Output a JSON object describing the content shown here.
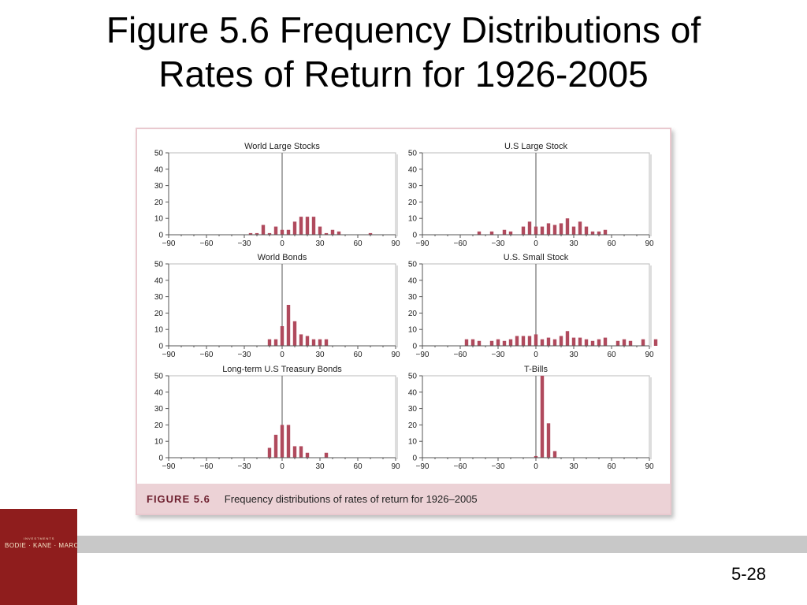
{
  "slide": {
    "title_line1": "Figure 5.6 Frequency Distributions of",
    "title_line2": "Rates of Return for 1926-2005",
    "page_number": "5-28",
    "logo_text": "BODIE · KANE · MARCUS",
    "logo_small": "INVESTMENTS"
  },
  "figure": {
    "label": "FIGURE 5.6",
    "caption": "Frequency distributions of rates of return for 1926–2005"
  },
  "colors": {
    "bar": "#b04a5d",
    "axis": "#555555",
    "frame": "#e9c9cf",
    "caption_band": "#ecd2d6",
    "logo": "#8f1d1d"
  },
  "chart_data": [
    {
      "type": "bar",
      "title": "World Large Stocks",
      "xlim": [
        -90,
        90
      ],
      "ylim": [
        0,
        50
      ],
      "xticks": [
        "−90",
        "−60",
        "−30",
        "0",
        "30",
        "60",
        "90"
      ],
      "yticks": [
        "0",
        "10",
        "20",
        "30",
        "40",
        "50"
      ],
      "x": [
        -25,
        -20,
        -15,
        -10,
        -5,
        0,
        5,
        10,
        15,
        20,
        25,
        30,
        35,
        40,
        45,
        70
      ],
      "values": [
        1,
        1,
        6,
        1,
        5,
        3,
        3,
        8,
        11,
        11,
        11,
        5,
        1,
        3,
        2,
        1
      ]
    },
    {
      "type": "bar",
      "title": "U.S Large Stock",
      "xlim": [
        -90,
        90
      ],
      "ylim": [
        0,
        50
      ],
      "xticks": [
        "−90",
        "−60",
        "−30",
        "0",
        "30",
        "60",
        "90"
      ],
      "yticks": [
        "0",
        "10",
        "20",
        "30",
        "40",
        "50"
      ],
      "x": [
        -45,
        -35,
        -25,
        -20,
        -10,
        -5,
        0,
        5,
        10,
        15,
        20,
        25,
        30,
        35,
        40,
        45,
        50,
        55
      ],
      "values": [
        2,
        2,
        3,
        2,
        5,
        8,
        5,
        5,
        7,
        6,
        7,
        10,
        5,
        8,
        5,
        2,
        2,
        3
      ]
    },
    {
      "type": "bar",
      "title": "World Bonds",
      "xlim": [
        -90,
        90
      ],
      "ylim": [
        0,
        50
      ],
      "xticks": [
        "−90",
        "−60",
        "−30",
        "0",
        "30",
        "60",
        "90"
      ],
      "yticks": [
        "0",
        "10",
        "20",
        "30",
        "40",
        "50"
      ],
      "x": [
        -10,
        -5,
        0,
        5,
        10,
        15,
        20,
        25,
        30,
        35
      ],
      "values": [
        4,
        4,
        12,
        25,
        15,
        7,
        6,
        4,
        4,
        4
      ]
    },
    {
      "type": "bar",
      "title": "U.S. Small Stock",
      "xlim": [
        -90,
        90
      ],
      "ylim": [
        0,
        50
      ],
      "xticks": [
        "−90",
        "−60",
        "−30",
        "0",
        "30",
        "60",
        "90"
      ],
      "yticks": [
        "0",
        "10",
        "20",
        "30",
        "40",
        "50"
      ],
      "x": [
        -55,
        -50,
        -45,
        -35,
        -30,
        -25,
        -20,
        -15,
        -10,
        -5,
        0,
        5,
        10,
        15,
        20,
        25,
        30,
        35,
        40,
        45,
        50,
        55,
        65,
        70,
        75,
        85,
        95
      ],
      "values": [
        4,
        4,
        3,
        3,
        4,
        3,
        4,
        6,
        6,
        6,
        7,
        4,
        5,
        4,
        6,
        9,
        5,
        5,
        4,
        3,
        4,
        5,
        3,
        4,
        3,
        4,
        4
      ]
    },
    {
      "type": "bar",
      "title": "Long-term U.S Treasury Bonds",
      "xlim": [
        -90,
        90
      ],
      "ylim": [
        0,
        50
      ],
      "xticks": [
        "−90",
        "−60",
        "−30",
        "0",
        "30",
        "60",
        "90"
      ],
      "yticks": [
        "0",
        "10",
        "20",
        "30",
        "40",
        "50"
      ],
      "x": [
        -10,
        -5,
        0,
        5,
        10,
        15,
        20,
        25,
        35
      ],
      "values": [
        6,
        14,
        20,
        20,
        7,
        7,
        3,
        0,
        3
      ]
    },
    {
      "type": "bar",
      "title": "T-Bills",
      "xlim": [
        -90,
        90
      ],
      "ylim": [
        0,
        50
      ],
      "xticks": [
        "−90",
        "−60",
        "−30",
        "0",
        "30",
        "60",
        "90"
      ],
      "yticks": [
        "0",
        "10",
        "20",
        "30",
        "40",
        "50"
      ],
      "x": [
        0,
        5,
        10,
        15
      ],
      "values": [
        1,
        50,
        21,
        4
      ]
    }
  ]
}
